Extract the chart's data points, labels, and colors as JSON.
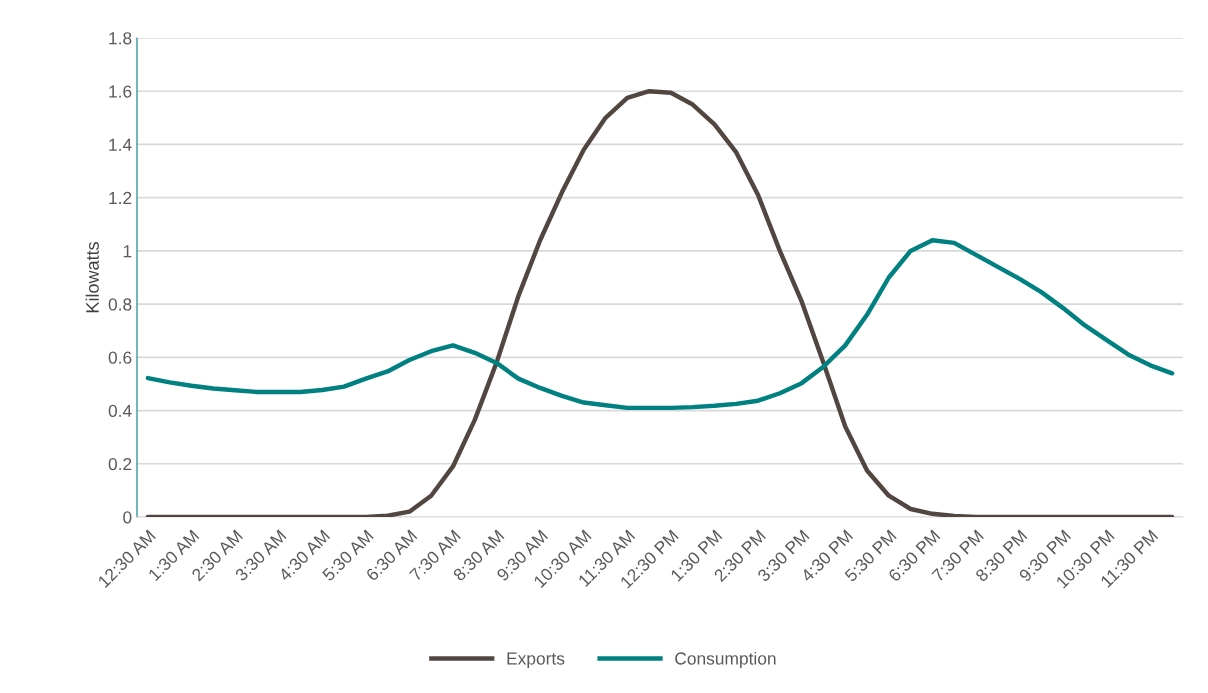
{
  "chart_data": {
    "type": "line",
    "ylabel": "Kilowatts",
    "categories": [
      "12:30 AM",
      null,
      "1:30 AM",
      null,
      "2:30 AM",
      null,
      "3:30 AM",
      null,
      "4:30 AM",
      null,
      "5:30 AM",
      null,
      "6:30 AM",
      null,
      "7:30 AM",
      null,
      "8:30 AM",
      null,
      "9:30 AM",
      null,
      "10:30 AM",
      null,
      "11:30 AM",
      null,
      "12:30 PM",
      null,
      "1:30 PM",
      null,
      "2:30 PM",
      null,
      "3:30 PM",
      null,
      "4:30 PM",
      null,
      "5:30 PM",
      null,
      "6:30 PM",
      null,
      "7:30 PM",
      null,
      "8:30 PM",
      null,
      "9:30 PM",
      null,
      "10:30 PM",
      null,
      "11:30 PM",
      null
    ],
    "series": [
      {
        "name": "Exports",
        "color": "#524640",
        "values": [
          0,
          0,
          0,
          0,
          0,
          0,
          0,
          0,
          0,
          0,
          0,
          0.005,
          0.02,
          0.08,
          0.19,
          0.365,
          0.58,
          0.83,
          1.04,
          1.22,
          1.38,
          1.5,
          1.575,
          1.6,
          1.594,
          1.55,
          1.475,
          1.37,
          1.21,
          1.0,
          0.81,
          0.58,
          0.34,
          0.175,
          0.08,
          0.03,
          0.012,
          0.004,
          0,
          0,
          0,
          0,
          0,
          0,
          0,
          0,
          0,
          0
        ]
      },
      {
        "name": "Consumption",
        "color": "#008080",
        "values": [
          0.522,
          0.506,
          0.493,
          0.483,
          0.476,
          0.47,
          0.47,
          0.47,
          0.477,
          0.49,
          0.52,
          0.547,
          0.59,
          0.623,
          0.645,
          0.617,
          0.579,
          0.52,
          0.485,
          0.455,
          0.43,
          0.42,
          0.41,
          0.41,
          0.41,
          0.413,
          0.418,
          0.425,
          0.437,
          0.465,
          0.503,
          0.565,
          0.645,
          0.76,
          0.9,
          1.0,
          1.04,
          1.03,
          0.985,
          0.94,
          0.895,
          0.845,
          0.785,
          0.72,
          0.665,
          0.61,
          0.57,
          0.54
        ]
      }
    ],
    "ylim": [
      0,
      1.8
    ],
    "yticks": [
      0,
      0.2,
      0.4,
      0.6,
      0.8,
      1,
      1.2,
      1.4,
      1.6,
      1.8
    ],
    "grid": "y",
    "legend": "bottom",
    "marker": "none",
    "line_style": "solid"
  }
}
